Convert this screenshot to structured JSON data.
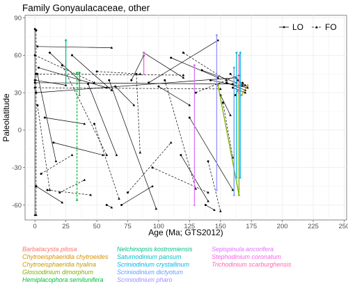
{
  "chart_data": {
    "type": "line",
    "title": "Family Gonyaulacaceae, other",
    "xlabel": "Age (Ma; GTS2012)",
    "ylabel": "Paleolatitude",
    "xlim": [
      -8,
      252
    ],
    "ylim": [
      -72,
      92
    ],
    "x_ticks": [
      0,
      25,
      50,
      75,
      100,
      125,
      150,
      175,
      200,
      225,
      250
    ],
    "y_ticks": [
      -60,
      -30,
      0,
      30,
      60,
      90
    ],
    "grid": true,
    "legend_position": "top-right",
    "legend": [
      {
        "label": "LO",
        "line": "solid"
      },
      {
        "label": "FO",
        "line": "dashed"
      }
    ],
    "species": [
      {
        "name": "Barbatacysta pilosa",
        "color": "#f8766d"
      },
      {
        "name": "Chytroeisphaeridia chytroeides",
        "color": "#d89000"
      },
      {
        "name": "Chytroeisphaeridia hyalina",
        "color": "#c49a00"
      },
      {
        "name": "Glossodinium dimorphum",
        "color": "#7cae00"
      },
      {
        "name": "Hemiplacophora semilunifera",
        "color": "#00ba38"
      },
      {
        "name": "Nelchinopsis kostromiensis",
        "color": "#00c08b"
      },
      {
        "name": "Saturnodinium pansum",
        "color": "#00bfc4"
      },
      {
        "name": "Scriniodinium crystallinum",
        "color": "#00b4f0"
      },
      {
        "name": "Scriniodinium dictyotum",
        "color": "#619cff"
      },
      {
        "name": "Scriniodinium pharo",
        "color": "#9590ff"
      },
      {
        "name": "Sepispinula ancorifera",
        "color": "#db72fb"
      },
      {
        "name": "Stephodinium coronatum",
        "color": "#f564e3"
      },
      {
        "name": "Trichodinium scarburghensis",
        "color": "#ff64b0"
      }
    ],
    "colored_segments": [
      {
        "species": "Chytroeisphaeridia hyalina",
        "x": [
          167,
          172
        ],
        "y": [
          28,
          36
        ],
        "style": "solid"
      },
      {
        "species": "Glossodinium dimorphum",
        "x": [
          148,
          165
        ],
        "y": [
          36,
          -52
        ],
        "style": "solid"
      },
      {
        "species": "Glossodinium dimorphum",
        "x": [
          165,
          165
        ],
        "y": [
          36,
          -52
        ],
        "style": "solid"
      },
      {
        "species": "Hemiplacophora semilunifera",
        "x": [
          34,
          34
        ],
        "y": [
          46,
          -56
        ],
        "style": "dashed"
      },
      {
        "species": "Hemiplacophora semilunifera",
        "x": [
          36,
          36
        ],
        "y": [
          46,
          28
        ],
        "style": "solid"
      },
      {
        "species": "Nelchinopsis kostromiensis",
        "x": [
          25,
          25
        ],
        "y": [
          72,
          38
        ],
        "style": "solid"
      },
      {
        "species": "Saturnodinium pansum",
        "x": [
          163,
          163
        ],
        "y": [
          62,
          -38
        ],
        "style": "solid"
      },
      {
        "species": "Scriniodinium crystallinum",
        "x": [
          166,
          166
        ],
        "y": [
          62,
          -38
        ],
        "style": "solid"
      },
      {
        "species": "Scriniodinium dictyotum",
        "x": [
          161,
          161
        ],
        "y": [
          50,
          -52
        ],
        "style": "solid"
      },
      {
        "species": "Scriniodinium pharo",
        "x": [
          147,
          147
        ],
        "y": [
          76,
          -48
        ],
        "style": "solid"
      },
      {
        "species": "Sepispinula ancorifera",
        "x": [
          129,
          129
        ],
        "y": [
          52,
          -60
        ],
        "style": "solid"
      },
      {
        "species": "Stephodinium coronatum",
        "x": [
          88,
          88
        ],
        "y": [
          62,
          45
        ],
        "style": "solid"
      },
      {
        "species": "Trichodinium scarburghensis",
        "x": [
          165,
          165
        ],
        "y": [
          60,
          30
        ],
        "style": "solid"
      }
    ],
    "black_segments": [
      {
        "x": [
          0,
          0
        ],
        "y": [
          81,
          -68
        ],
        "style": "solid"
      },
      {
        "x": [
          1,
          1
        ],
        "y": [
          80,
          -68
        ],
        "style": "dashed"
      },
      {
        "x": [
          0,
          25
        ],
        "y": [
          40,
          36
        ],
        "style": "solid"
      },
      {
        "x": [
          0,
          48
        ],
        "y": [
          60,
          38
        ],
        "style": "dashed"
      },
      {
        "x": [
          2,
          62
        ],
        "y": [
          67,
          66
        ],
        "style": "solid"
      },
      {
        "x": [
          0,
          160
        ],
        "y": [
          38,
          37
        ],
        "style": "solid"
      },
      {
        "x": [
          0,
          150
        ],
        "y": [
          34,
          33
        ],
        "style": "dashed"
      },
      {
        "x": [
          1,
          163
        ],
        "y": [
          30,
          42
        ],
        "style": "solid"
      },
      {
        "x": [
          1,
          120
        ],
        "y": [
          45,
          44
        ],
        "style": "dashed"
      },
      {
        "x": [
          3,
          58
        ],
        "y": [
          50,
          34
        ],
        "style": "solid"
      },
      {
        "x": [
          2,
          17
        ],
        "y": [
          45,
          -25
        ],
        "style": "solid"
      },
      {
        "x": [
          2,
          12
        ],
        "y": [
          20,
          -48
        ],
        "style": "dashed"
      },
      {
        "x": [
          1,
          22
        ],
        "y": [
          -45,
          -58
        ],
        "style": "solid"
      },
      {
        "x": [
          10,
          45
        ],
        "y": [
          -48,
          -52
        ],
        "style": "dashed"
      },
      {
        "x": [
          15,
          55
        ],
        "y": [
          -10,
          -20
        ],
        "style": "solid"
      },
      {
        "x": [
          22,
          58
        ],
        "y": [
          52,
          -20
        ],
        "style": "dashed"
      },
      {
        "x": [
          30,
          62
        ],
        "y": [
          60,
          32
        ],
        "style": "solid"
      },
      {
        "x": [
          43,
          66
        ],
        "y": [
          37,
          -20
        ],
        "style": "solid"
      },
      {
        "x": [
          48,
          68
        ],
        "y": [
          5,
          -55
        ],
        "style": "dashed"
      },
      {
        "x": [
          60,
          98
        ],
        "y": [
          40,
          -63
        ],
        "style": "solid"
      },
      {
        "x": [
          70,
          95
        ],
        "y": [
          -60,
          -45
        ],
        "style": "solid"
      },
      {
        "x": [
          75,
          110
        ],
        "y": [
          -50,
          -10
        ],
        "style": "dashed"
      },
      {
        "x": [
          78,
          88
        ],
        "y": [
          40,
          60
        ],
        "style": "solid"
      },
      {
        "x": [
          82,
          85
        ],
        "y": [
          45,
          -18
        ],
        "style": "dashed"
      },
      {
        "x": [
          88,
          120
        ],
        "y": [
          62,
          42
        ],
        "style": "solid"
      },
      {
        "x": [
          92,
          148
        ],
        "y": [
          38,
          72
        ],
        "style": "solid"
      },
      {
        "x": [
          95,
          140
        ],
        "y": [
          -30,
          -50
        ],
        "style": "dashed"
      },
      {
        "x": [
          100,
          125
        ],
        "y": [
          35,
          20
        ],
        "style": "solid"
      },
      {
        "x": [
          105,
          130
        ],
        "y": [
          40,
          -47
        ],
        "style": "dashed"
      },
      {
        "x": [
          110,
          148
        ],
        "y": [
          58,
          42
        ],
        "style": "solid"
      },
      {
        "x": [
          118,
          140
        ],
        "y": [
          -20,
          -57
        ],
        "style": "solid"
      },
      {
        "x": [
          120,
          155
        ],
        "y": [
          62,
          40
        ],
        "style": "dashed"
      },
      {
        "x": [
          125,
          160
        ],
        "y": [
          10,
          -48
        ],
        "style": "solid"
      },
      {
        "x": [
          130,
          165
        ],
        "y": [
          30,
          44
        ],
        "style": "dashed"
      },
      {
        "x": [
          135,
          163
        ],
        "y": [
          48,
          38
        ],
        "style": "solid"
      },
      {
        "x": [
          138,
          145
        ],
        "y": [
          -60,
          -64
        ],
        "style": "solid"
      },
      {
        "x": [
          140,
          150
        ],
        "y": [
          -25,
          -65
        ],
        "style": "dashed"
      },
      {
        "x": [
          142,
          172
        ],
        "y": [
          40,
          34
        ],
        "style": "solid"
      },
      {
        "x": [
          150,
          158
        ],
        "y": [
          28,
          12
        ],
        "style": "solid"
      },
      {
        "x": [
          152,
          160
        ],
        "y": [
          22,
          -22
        ],
        "style": "dashed"
      },
      {
        "x": [
          155,
          170
        ],
        "y": [
          38,
          32
        ],
        "style": "solid"
      },
      {
        "x": [
          158,
          168
        ],
        "y": [
          45,
          36
        ],
        "style": "dashed"
      },
      {
        "x": [
          160,
          170
        ],
        "y": [
          34,
          30
        ],
        "style": "solid"
      },
      {
        "x": [
          162,
          168
        ],
        "y": [
          28,
          38
        ],
        "style": "dashed"
      },
      {
        "x": [
          164,
          170
        ],
        "y": [
          40,
          36
        ],
        "style": "solid"
      },
      {
        "x": [
          12,
          36
        ],
        "y": [
          62,
          40
        ],
        "style": "solid"
      },
      {
        "x": [
          20,
          40
        ],
        "y": [
          -50,
          -40
        ],
        "style": "dashed"
      },
      {
        "x": [
          5,
          30
        ],
        "y": [
          -35,
          -20
        ],
        "style": "dashed"
      },
      {
        "x": [
          8,
          40
        ],
        "y": [
          10,
          5
        ],
        "style": "solid"
      },
      {
        "x": [
          50,
          85
        ],
        "y": [
          47,
          45
        ],
        "style": "dashed"
      },
      {
        "x": [
          65,
          80
        ],
        "y": [
          35,
          20
        ],
        "style": "solid"
      },
      {
        "x": [
          58,
          62
        ],
        "y": [
          -60,
          -62
        ],
        "style": "solid"
      }
    ]
  }
}
